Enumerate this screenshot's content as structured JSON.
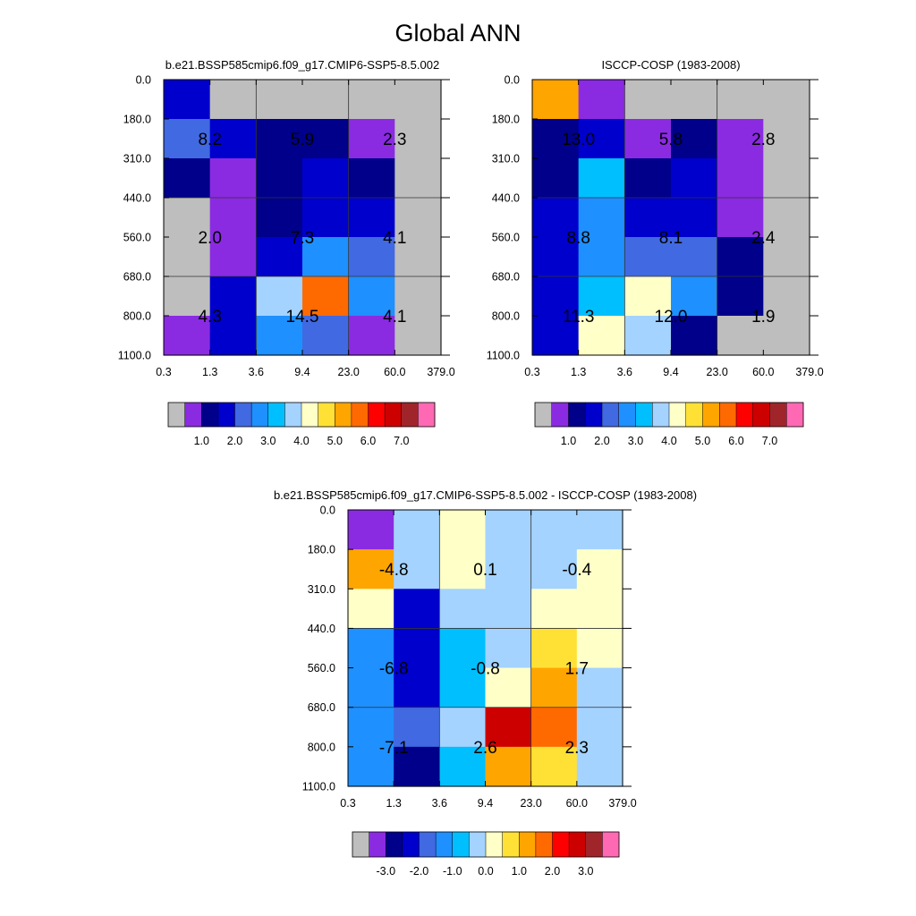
{
  "title": "Global ANN",
  "colors": {
    "missing": "#bebebe",
    "frame": "#000000",
    "grid": "#333333"
  },
  "chart_data": [
    {
      "type": "heatmap",
      "id": "model",
      "title": "b.e21.BSSP585cmip6.f09_g17.CMIP6-SSP5-8.5.002",
      "x_ticks": [
        "0.3",
        "1.3",
        "3.6",
        "9.4",
        "23.0",
        "60.0",
        "379.0"
      ],
      "y_ticks": [
        "0.0",
        "180.0",
        "310.0",
        "440.0",
        "560.0",
        "680.0",
        "800.0",
        "1100.0"
      ],
      "cell_rows_top_to_bottom": [
        [
          "#0000cd",
          "#bebebe",
          "#bebebe",
          "#bebebe",
          "#bebebe",
          "#bebebe"
        ],
        [
          "#4169e1",
          "#0000cd",
          "#00008b",
          "#00008b",
          "#8a2be2",
          "#bebebe"
        ],
        [
          "#00008b",
          "#8a2be2",
          "#00008b",
          "#0000cd",
          "#00008b",
          "#bebebe"
        ],
        [
          "#bebebe",
          "#8a2be2",
          "#00008b",
          "#0000cd",
          "#0000cd",
          "#bebebe"
        ],
        [
          "#bebebe",
          "#8a2be2",
          "#0000cd",
          "#1e90ff",
          "#4169e1",
          "#bebebe"
        ],
        [
          "#bebebe",
          "#0000cd",
          "#a4d3ff",
          "#ff6a00",
          "#1e90ff",
          "#bebebe"
        ],
        [
          "#8a2be2",
          "#0000cd",
          "#1e90ff",
          "#4169e1",
          "#8a2be2",
          "#bebebe"
        ]
      ],
      "annotations": [
        {
          "label": "8.2",
          "x_block": 0,
          "y_block": 0
        },
        {
          "label": "5.9",
          "x_block": 1,
          "y_block": 0
        },
        {
          "label": "2.3",
          "x_block": 2,
          "y_block": 0
        },
        {
          "label": "2.0",
          "x_block": 0,
          "y_block": 1
        },
        {
          "label": "7.3",
          "x_block": 1,
          "y_block": 1
        },
        {
          "label": "4.1",
          "x_block": 2,
          "y_block": 1
        },
        {
          "label": "4.3",
          "x_block": 0,
          "y_block": 2
        },
        {
          "label": "14.5",
          "x_block": 1,
          "y_block": 2
        },
        {
          "label": "4.1",
          "x_block": 2,
          "y_block": 2
        }
      ],
      "colorbar": {
        "colors": [
          "#bebebe",
          "#8a2be2",
          "#00008b",
          "#0000cd",
          "#4169e1",
          "#1e90ff",
          "#00bfff",
          "#a4d3ff",
          "#ffffc8",
          "#ffe135",
          "#ffa500",
          "#ff6a00",
          "#ff0000",
          "#cd0000",
          "#a0252a",
          "#ff69b4"
        ],
        "labels": [
          "1.0",
          "2.0",
          "3.0",
          "4.0",
          "5.0",
          "6.0",
          "7.0"
        ]
      }
    },
    {
      "type": "heatmap",
      "id": "observation",
      "title": "ISCCP-COSP (1983-2008)",
      "x_ticks": [
        "0.3",
        "1.3",
        "3.6",
        "9.4",
        "23.0",
        "60.0",
        "379.0"
      ],
      "y_ticks": [
        "0.0",
        "180.0",
        "310.0",
        "440.0",
        "560.0",
        "680.0",
        "800.0",
        "1100.0"
      ],
      "cell_rows_top_to_bottom": [
        [
          "#ffa500",
          "#8a2be2",
          "#bebebe",
          "#bebebe",
          "#bebebe",
          "#bebebe"
        ],
        [
          "#00008b",
          "#0000cd",
          "#8a2be2",
          "#00008b",
          "#8a2be2",
          "#bebebe"
        ],
        [
          "#00008b",
          "#00bfff",
          "#00008b",
          "#0000cd",
          "#8a2be2",
          "#bebebe"
        ],
        [
          "#0000cd",
          "#1e90ff",
          "#0000cd",
          "#0000cd",
          "#8a2be2",
          "#bebebe"
        ],
        [
          "#0000cd",
          "#1e90ff",
          "#4169e1",
          "#4169e1",
          "#00008b",
          "#bebebe"
        ],
        [
          "#0000cd",
          "#00bfff",
          "#ffffc8",
          "#1e90ff",
          "#00008b",
          "#bebebe"
        ],
        [
          "#0000cd",
          "#ffffc8",
          "#a4d3ff",
          "#00008b",
          "#bebebe",
          "#bebebe"
        ]
      ],
      "annotations": [
        {
          "label": "13.0",
          "x_block": 0,
          "y_block": 0
        },
        {
          "label": "5.8",
          "x_block": 1,
          "y_block": 0
        },
        {
          "label": "2.8",
          "x_block": 2,
          "y_block": 0
        },
        {
          "label": "8.8",
          "x_block": 0,
          "y_block": 1
        },
        {
          "label": "8.1",
          "x_block": 1,
          "y_block": 1
        },
        {
          "label": "2.4",
          "x_block": 2,
          "y_block": 1
        },
        {
          "label": "11.3",
          "x_block": 0,
          "y_block": 2
        },
        {
          "label": "12.0",
          "x_block": 1,
          "y_block": 2
        },
        {
          "label": "1.9",
          "x_block": 2,
          "y_block": 2
        }
      ],
      "colorbar": {
        "colors": [
          "#bebebe",
          "#8a2be2",
          "#00008b",
          "#0000cd",
          "#4169e1",
          "#1e90ff",
          "#00bfff",
          "#a4d3ff",
          "#ffffc8",
          "#ffe135",
          "#ffa500",
          "#ff6a00",
          "#ff0000",
          "#cd0000",
          "#a0252a",
          "#ff69b4"
        ],
        "labels": [
          "1.0",
          "2.0",
          "3.0",
          "4.0",
          "5.0",
          "6.0",
          "7.0"
        ]
      }
    },
    {
      "type": "heatmap",
      "id": "difference",
      "title": "b.e21.BSSP585cmip6.f09_g17.CMIP6-SSP5-8.5.002 - ISCCP-COSP (1983-2008)",
      "x_ticks": [
        "0.3",
        "1.3",
        "3.6",
        "9.4",
        "23.0",
        "60.0",
        "379.0"
      ],
      "y_ticks": [
        "0.0",
        "180.0",
        "310.0",
        "440.0",
        "560.0",
        "680.0",
        "800.0",
        "1100.0"
      ],
      "cell_rows_top_to_bottom": [
        [
          "#8a2be2",
          "#a4d3ff",
          "#ffffc8",
          "#a4d3ff",
          "#a4d3ff",
          "#a4d3ff"
        ],
        [
          "#ffa500",
          "#a4d3ff",
          "#ffffc8",
          "#a4d3ff",
          "#a4d3ff",
          "#ffffc8"
        ],
        [
          "#ffffc8",
          "#0000cd",
          "#a4d3ff",
          "#a4d3ff",
          "#ffffc8",
          "#ffffc8"
        ],
        [
          "#1e90ff",
          "#0000cd",
          "#00bfff",
          "#a4d3ff",
          "#ffe135",
          "#ffffc8"
        ],
        [
          "#1e90ff",
          "#0000cd",
          "#00bfff",
          "#ffffc8",
          "#ffa500",
          "#a4d3ff"
        ],
        [
          "#1e90ff",
          "#4169e1",
          "#a4d3ff",
          "#cd0000",
          "#ff6a00",
          "#a4d3ff"
        ],
        [
          "#1e90ff",
          "#00008b",
          "#00bfff",
          "#ffa500",
          "#ffe135",
          "#a4d3ff"
        ]
      ],
      "annotations": [
        {
          "label": "-4.8",
          "x_block": 0,
          "y_block": 0
        },
        {
          "label": "0.1",
          "x_block": 1,
          "y_block": 0
        },
        {
          "label": "-0.4",
          "x_block": 2,
          "y_block": 0
        },
        {
          "label": "-6.8",
          "x_block": 0,
          "y_block": 1
        },
        {
          "label": "-0.8",
          "x_block": 1,
          "y_block": 1
        },
        {
          "label": "1.7",
          "x_block": 2,
          "y_block": 1
        },
        {
          "label": "-7.1",
          "x_block": 0,
          "y_block": 2
        },
        {
          "label": "2.6",
          "x_block": 1,
          "y_block": 2
        },
        {
          "label": "2.3",
          "x_block": 2,
          "y_block": 2
        }
      ],
      "colorbar": {
        "colors": [
          "#bebebe",
          "#8a2be2",
          "#00008b",
          "#0000cd",
          "#4169e1",
          "#1e90ff",
          "#00bfff",
          "#a4d3ff",
          "#ffffc8",
          "#ffe135",
          "#ffa500",
          "#ff6a00",
          "#ff0000",
          "#cd0000",
          "#a0252a",
          "#ff69b4"
        ],
        "labels": [
          "-3.0",
          "-2.0",
          "-1.0",
          "0.0",
          "1.0",
          "2.0",
          "3.0"
        ]
      }
    }
  ]
}
